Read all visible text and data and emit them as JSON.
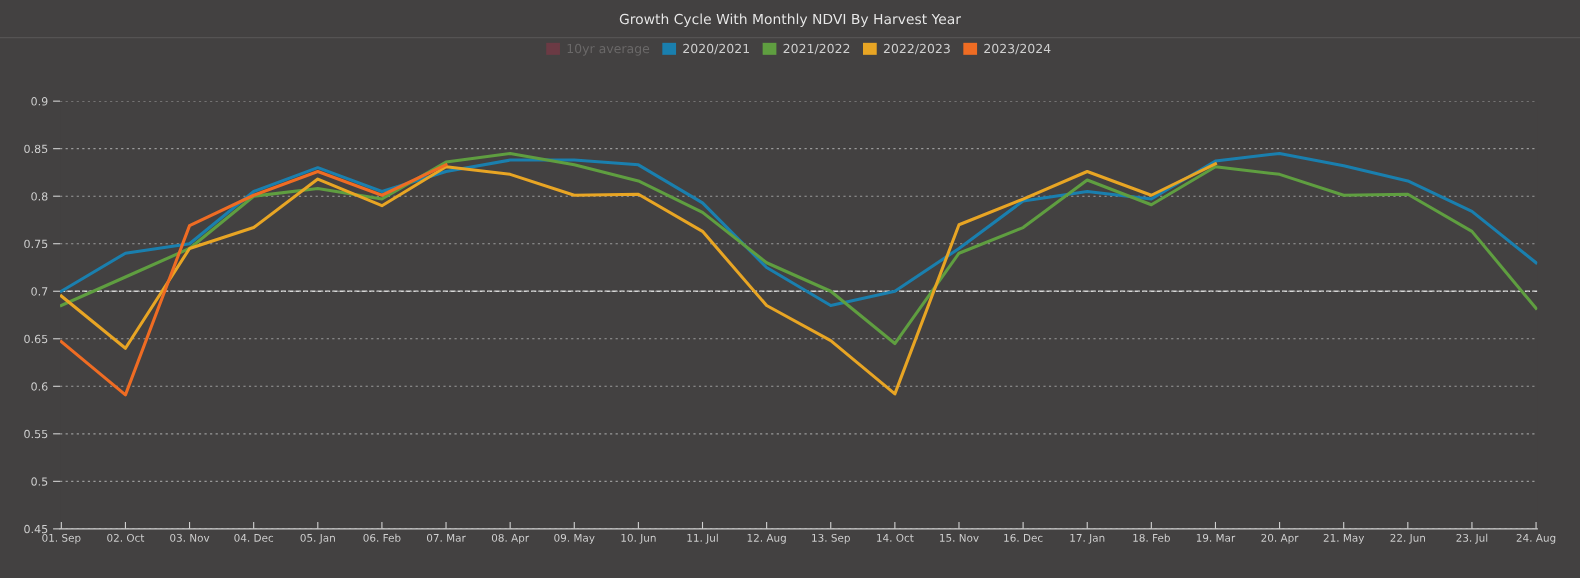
{
  "chart_data": {
    "type": "line",
    "title": "Growth Cycle With Monthly NDVI By Harvest Year",
    "categories": [
      "01. Sep",
      "02. Oct",
      "03. Nov",
      "04. Dec",
      "05. Jan",
      "06. Feb",
      "07. Mar",
      "08. Apr",
      "09. May",
      "10. Jun",
      "11. Jul",
      "12. Aug",
      "13. Sep",
      "14. Oct",
      "15. Nov",
      "16. Dec",
      "17. Jan",
      "18. Feb",
      "19. Mar",
      "20. Apr",
      "21. May",
      "22. Jun",
      "23. Jul",
      "24. Aug"
    ],
    "series": [
      {
        "name": "10yr average",
        "color": "#6b3a44",
        "values": [
          null,
          null,
          null,
          null,
          null,
          null,
          null,
          null,
          null,
          null,
          null,
          null,
          null,
          null,
          null,
          null,
          null,
          null,
          null,
          null,
          null,
          null,
          null,
          null
        ]
      },
      {
        "name": "2020/2021",
        "color": "#1a7fae",
        "values": [
          0.7,
          0.74,
          0.75,
          0.805,
          0.83,
          0.805,
          0.826,
          0.838,
          0.838,
          0.833,
          0.793,
          0.725,
          0.685,
          0.7,
          0.745,
          0.795,
          0.805,
          0.797,
          0.837,
          0.845,
          0.832,
          0.816,
          0.784,
          0.73
        ]
      },
      {
        "name": "2021/2022",
        "color": "#5f9e40",
        "values": [
          0.685,
          0.715,
          0.745,
          0.8,
          0.808,
          0.797,
          0.836,
          0.845,
          0.833,
          0.816,
          0.783,
          0.73,
          0.7,
          0.645,
          0.74,
          0.767,
          0.817,
          0.791,
          0.831,
          0.823,
          0.801,
          0.802,
          0.763,
          0.682
        ]
      },
      {
        "name": "2022/2023",
        "color": "#e8a524",
        "values": [
          0.695,
          0.64,
          0.745,
          0.767,
          0.818,
          0.79,
          0.831,
          0.823,
          0.801,
          0.802,
          0.763,
          0.685,
          0.648,
          0.592,
          0.77,
          0.797,
          0.826,
          0.801,
          0.834,
          null,
          null,
          null,
          null,
          null
        ]
      },
      {
        "name": "2023/2024",
        "color": "#ef6c23",
        "values": [
          0.647,
          0.591,
          0.769,
          0.801,
          0.826,
          0.801,
          0.833,
          null,
          null,
          null,
          null,
          null,
          null,
          null,
          null,
          null,
          null,
          null,
          null,
          null,
          null,
          null,
          null,
          null
        ]
      }
    ],
    "ylim": [
      0.45,
      0.9
    ],
    "yticks": [
      0.45,
      0.5,
      0.55,
      0.6,
      0.65,
      0.7,
      0.75,
      0.8,
      0.85,
      0.9
    ],
    "ref_lines": [
      {
        "axis": "y",
        "value": 0.7,
        "color": "#d8d8d8",
        "line_style": "dashed"
      }
    ],
    "grid": "y",
    "legend": "top",
    "marker": "none",
    "line_style": "solid"
  }
}
